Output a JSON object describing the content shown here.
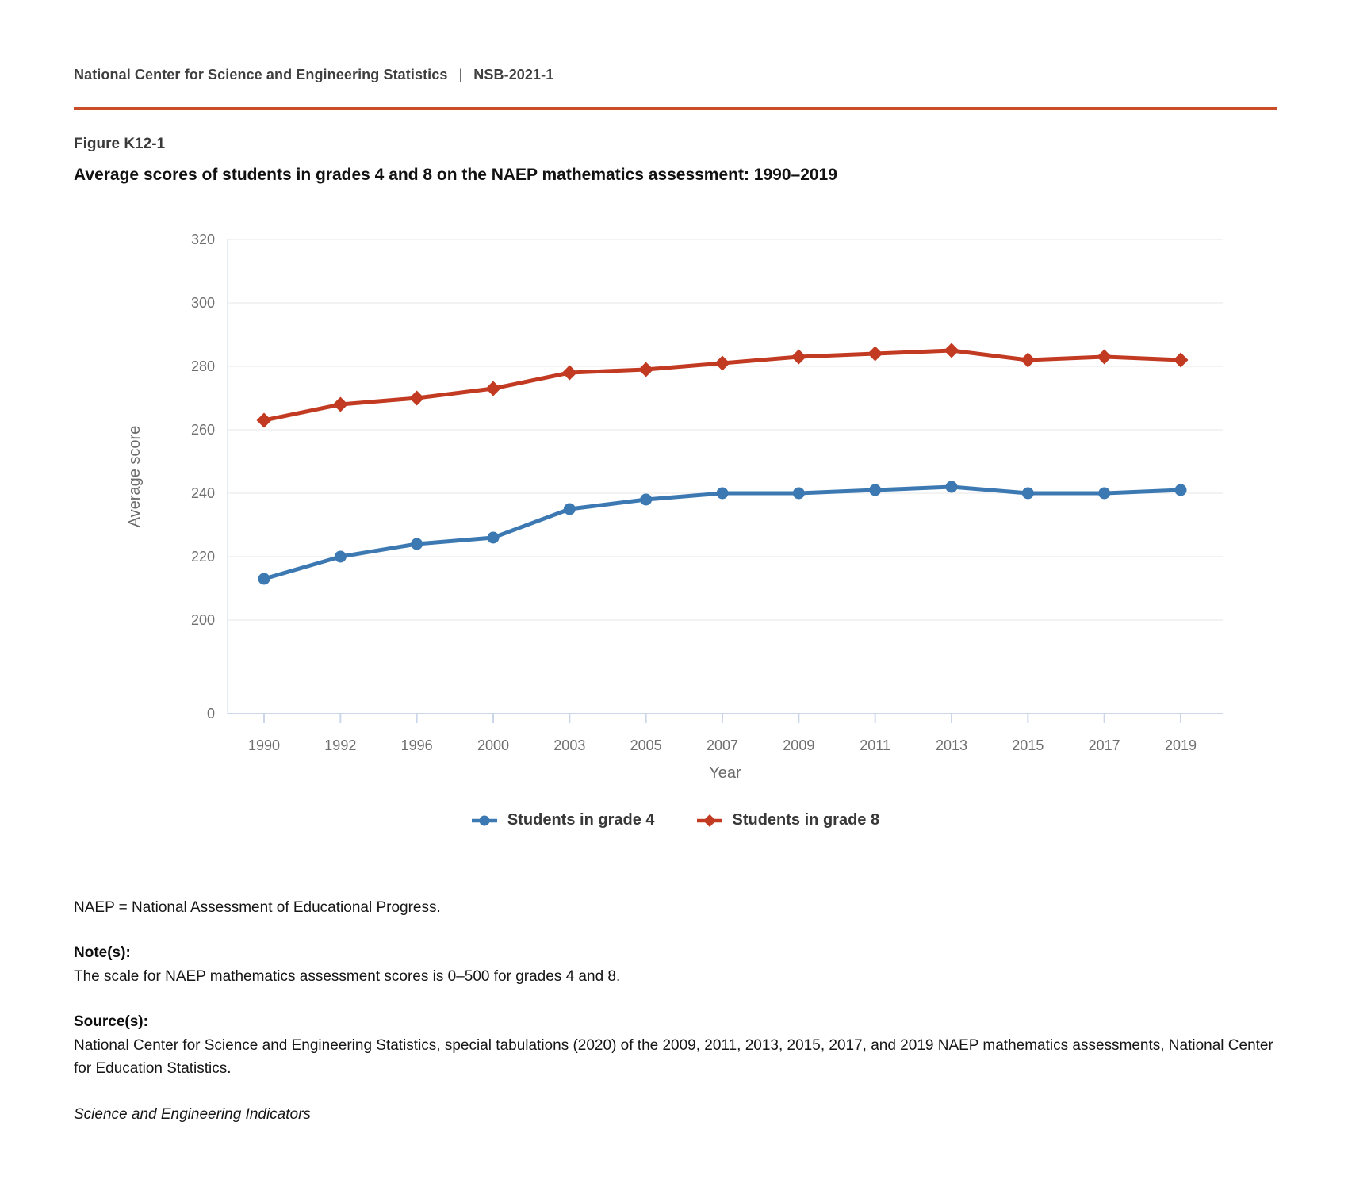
{
  "page": {
    "org_name": "National Center for Science and Engineering Statistics",
    "pipe": "|",
    "report_id": "NSB-2021-1",
    "figure_label": "Figure K12-1",
    "title": "Average scores of students in grades 4 and 8 on the NAEP mathematics assessment: 1990–2019",
    "accent_rule_color": "#c94e27"
  },
  "chart_data": {
    "type": "line",
    "title": "Average scores of students in grades 4 and 8 on the NAEP mathematics assessment: 1990–2019",
    "xlabel": "Year",
    "ylabel": "Average score",
    "categories": [
      "1990",
      "1992",
      "1996",
      "2000",
      "2003",
      "2005",
      "2007",
      "2009",
      "2011",
      "2013",
      "2015",
      "2017",
      "2019"
    ],
    "series": [
      {
        "name": "Students in grade 4",
        "color": "#3c79b2",
        "marker": "circle",
        "values": [
          213,
          220,
          224,
          226,
          235,
          238,
          240,
          240,
          241,
          242,
          240,
          240,
          241
        ]
      },
      {
        "name": "Students in grade 8",
        "color": "#c23a21",
        "marker": "diamond",
        "values": [
          263,
          268,
          270,
          273,
          278,
          279,
          281,
          283,
          284,
          285,
          282,
          283,
          282
        ]
      }
    ],
    "y_ticks": [
      0,
      200,
      220,
      240,
      260,
      280,
      300,
      320
    ],
    "ylim": [
      0,
      320
    ],
    "axis_break": "y axis compressed between 0 and 200",
    "grid": "horizontal",
    "legend_position": "bottom"
  },
  "footer": {
    "abbreviation": "NAEP = National Assessment of Educational Progress.",
    "notes_label": "Note(s):",
    "notes_text": "The scale for NAEP mathematics assessment scores is 0–500 for grades 4 and 8.",
    "sources_label": "Source(s):",
    "sources_text": "National Center for Science and Engineering Statistics, special tabulations (2020) of the 2009, 2011, 2013, 2015, 2017, and 2019 NAEP mathematics assessments, National Center for Education Statistics.",
    "publication": "Science and Engineering Indicators"
  }
}
